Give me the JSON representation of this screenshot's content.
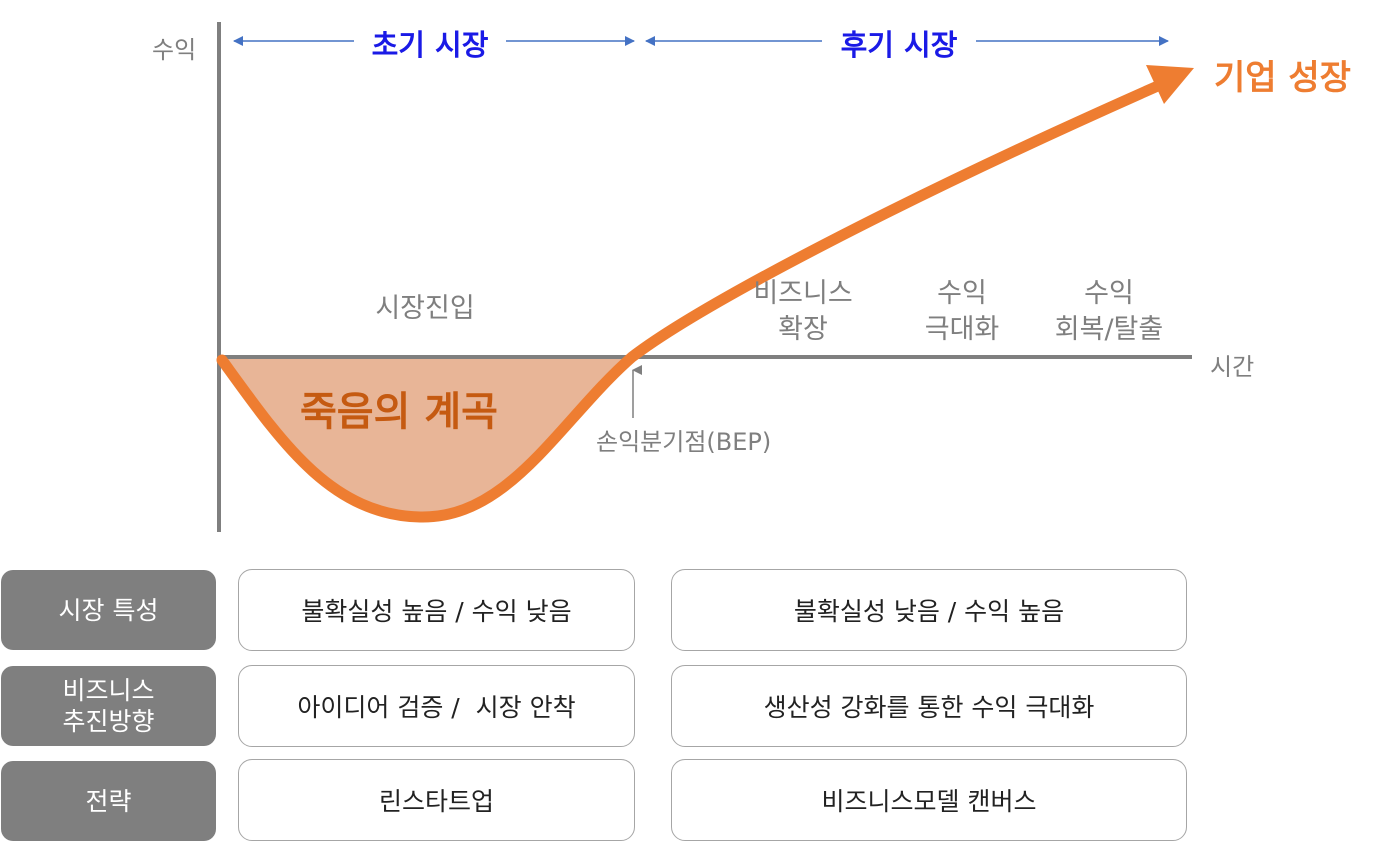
{
  "diagram": {
    "y_axis_label": "수익",
    "x_axis_label": "시간",
    "phases": [
      {
        "label": "초기 시장"
      },
      {
        "label": "후기 시장"
      }
    ],
    "growth_label": "기업 성장",
    "valley_label": "죽음의 계곡",
    "bep_label": "손익분기점(BEP)",
    "stages": [
      {
        "label": "시장진입"
      },
      {
        "label": "비즈니스\n확장"
      },
      {
        "label": "수익\n극대화"
      },
      {
        "label": "수익\n회복/탈출"
      }
    ],
    "colors": {
      "curve": "#ee7d31",
      "valley_fill": "#e8b597",
      "phase_text": "#1a1ae6",
      "phase_arrow": "#4472c4",
      "axis": "#7f7f7f"
    }
  },
  "table": {
    "rows": [
      {
        "header": "시장 특성",
        "early": "불확실성 높음 / 수익 낮음",
        "late": "불확실성 낮음 / 수익 높음"
      },
      {
        "header": "비즈니스\n추진방향",
        "early": "아이디어 검증 /  시장 안착",
        "late": "생산성 강화를 통한 수익 극대화"
      },
      {
        "header": "전략",
        "early": "린스타트업",
        "late": "비즈니스모델 캔버스"
      }
    ]
  }
}
